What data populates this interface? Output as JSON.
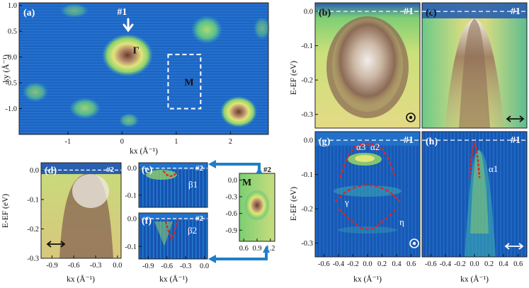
{
  "chart_data": [
    {
      "id": "a",
      "type": "heatmap",
      "label": "(a)",
      "xlabel": "kx (Å⁻¹)",
      "ylabel": "ky (Å⁻¹)",
      "xlim": [
        -1.9,
        2.7
      ],
      "ylim": [
        -1.5,
        1.05
      ],
      "xticks": [
        -1,
        0,
        1,
        2
      ],
      "yticks": [
        1.0,
        0.5,
        0.0,
        -0.5,
        -1.0
      ],
      "xtick_labels": [
        "-1",
        "0",
        "1",
        "2"
      ],
      "ytick_labels": [
        "1.0",
        "0.5",
        "0.0",
        "-0.5",
        "-1.0"
      ],
      "annotations": [
        {
          "text": "#1",
          "x": 0.0,
          "y": 0.82
        },
        {
          "text": "Γ",
          "x": 0.2,
          "y": 0.07
        },
        {
          "text": "M",
          "x": 1.15,
          "y": -0.55
        }
      ],
      "box": {
        "x0": 0.85,
        "x1": 1.45,
        "y0": -1.0,
        "y1": 0.05
      }
    },
    {
      "id": "b",
      "type": "heatmap",
      "label": "(b)",
      "tag": "#1",
      "ylabel": "E-EF (eV)",
      "ylim": [
        -0.34,
        0.025
      ],
      "yticks": [
        0.0,
        -0.1,
        -0.2,
        -0.3
      ],
      "ytick_labels": [
        "0.0",
        "-0.1",
        "-0.2",
        "-0.3"
      ],
      "fermi_level": 0.0,
      "polarization": "circular"
    },
    {
      "id": "c",
      "type": "heatmap",
      "label": "(c)",
      "tag": "#1",
      "ylim": [
        -0.34,
        0.025
      ],
      "fermi_level": 0.0,
      "polarization": "linear horizontal"
    },
    {
      "id": "d",
      "type": "heatmap",
      "label": "(d)",
      "tag": "#2",
      "xlabel": "kx (Å⁻¹)",
      "ylabel": "E-EF (eV)",
      "xlim": [
        -1.05,
        0.05
      ],
      "ylim": [
        -0.3,
        0.025
      ],
      "xticks": [
        -0.9,
        -0.6,
        -0.3,
        0.0
      ],
      "xtick_labels": [
        "-0.9",
        "-0.6",
        "-0.3",
        "0.0"
      ],
      "yticks": [
        0.0,
        -0.1,
        -0.2,
        -0.3
      ],
      "ytick_labels": [
        "0.0",
        "-0.1",
        "-0.2",
        "-0.3"
      ]
    },
    {
      "id": "e",
      "type": "heatmap",
      "label": "(e)",
      "tag": "#2",
      "ylim": [
        -0.145,
        0.02
      ],
      "yticks": [
        0.0,
        -0.1
      ],
      "ytick_labels": [
        "0.0",
        "-0.1"
      ],
      "band": "β1",
      "curve": {
        "x": [
          -0.66,
          -0.6,
          -0.54,
          -0.48,
          -0.42
        ],
        "y": [
          -0.01,
          -0.025,
          -0.03,
          -0.025,
          -0.01
        ]
      }
    },
    {
      "id": "f",
      "type": "heatmap",
      "label": "(f)",
      "tag": "#2",
      "xlabel": "kx (Å⁻¹)",
      "xlim": [
        -1.05,
        0.05
      ],
      "xticks": [
        -0.9,
        -0.6,
        -0.3,
        0.0
      ],
      "xtick_labels": [
        "-0.9",
        "-0.6",
        "-0.3",
        "0.0"
      ],
      "ylim": [
        -0.145,
        0.02
      ],
      "yticks": [
        0.0,
        -0.1
      ],
      "ytick_labels": [
        "0.0",
        "-0.1"
      ],
      "band": "β2",
      "curve": {
        "x": [
          -0.62,
          -0.57,
          -0.52,
          -0.48,
          -0.45,
          -0.42
        ],
        "y": [
          -0.01,
          -0.05,
          -0.075,
          -0.05,
          -0.02,
          0.0
        ]
      }
    },
    {
      "id": "M-inset",
      "type": "heatmap",
      "tag": "#2",
      "title": "M",
      "xlim": [
        0.5,
        1.3
      ],
      "ylim": [
        -1.1,
        0.12
      ],
      "xticks": [
        0.6,
        0.9,
        1.2
      ],
      "xtick_labels": [
        "0.6",
        "0.9",
        "1.2"
      ],
      "yticks": [
        0.0,
        -0.3,
        -0.6,
        -0.9
      ],
      "ytick_labels": [
        "0.0",
        "-0.3",
        "-0.6",
        "-0.9"
      ]
    },
    {
      "id": "g",
      "type": "heatmap",
      "label": "(g)",
      "tag": "#1",
      "xlabel": "kx (Å⁻¹)",
      "ylabel": "E-EF (eV)",
      "xlim": [
        -0.72,
        0.72
      ],
      "xticks": [
        -0.6,
        -0.4,
        -0.2,
        0.0,
        0.2,
        0.4,
        0.6
      ],
      "xtick_labels": [
        "-0.6",
        "-0.4",
        "-0.2",
        "0.0",
        "0.2",
        "0.4",
        "0.6"
      ],
      "ylim": [
        -0.34,
        0.025
      ],
      "yticks": [
        0.0,
        -0.1,
        -0.2,
        -0.3
      ],
      "ytick_labels": [
        "0.0",
        "-0.1",
        "-0.2",
        "-0.3"
      ],
      "bands": {
        "alpha3": "α3",
        "alpha2": "α2",
        "gamma": "γ",
        "eta": "η"
      },
      "curves": [
        {
          "name": "α outer",
          "x": [
            -0.38,
            -0.28,
            -0.18,
            -0.08,
            0.0,
            0.08,
            0.18,
            0.28,
            0.38
          ],
          "y": [
            -0.11,
            -0.05,
            -0.02,
            -0.01,
            -0.01,
            -0.01,
            -0.02,
            -0.05,
            -0.11
          ]
        },
        {
          "name": "α top",
          "x": [
            -0.14,
            -0.07,
            0.0,
            0.07,
            0.14
          ],
          "y": [
            -0.03,
            -0.015,
            -0.01,
            -0.015,
            -0.03
          ]
        },
        {
          "name": "γ",
          "x": [
            -0.45,
            -0.3,
            -0.15,
            0.0,
            0.15,
            0.3,
            0.45
          ],
          "y": [
            -0.18,
            -0.15,
            -0.135,
            -0.13,
            -0.135,
            -0.15,
            -0.18
          ]
        },
        {
          "name": "η",
          "x": [
            -0.4,
            -0.25,
            -0.1,
            0.0,
            0.1,
            0.25,
            0.4
          ],
          "y": [
            -0.2,
            -0.23,
            -0.255,
            -0.26,
            -0.255,
            -0.23,
            -0.2
          ]
        }
      ]
    },
    {
      "id": "h",
      "type": "heatmap",
      "label": "(h)",
      "tag": "#1",
      "xlabel": "kx (Å⁻¹)",
      "xlim": [
        -0.72,
        0.72
      ],
      "xticks": [
        -0.6,
        -0.4,
        -0.2,
        0.0,
        0.2,
        0.4,
        0.6
      ],
      "xtick_labels": [
        "-0.6",
        "-0.4",
        "-0.2",
        "0.0",
        "0.2",
        "0.4",
        "0.6"
      ],
      "ylim": [
        -0.34,
        0.025
      ],
      "band": "α1",
      "curve": {
        "x": [
          -0.07,
          -0.05,
          -0.02,
          0.0,
          0.02,
          0.05,
          0.07
        ],
        "y": [
          -0.11,
          -0.06,
          -0.02,
          -0.01,
          -0.02,
          -0.06,
          -0.11
        ]
      }
    }
  ],
  "colors": {
    "cmap": [
      "#0b3d91",
      "#1f77d4",
      "#3fb0b0",
      "#8fd16a",
      "#e2e47c",
      "#b48a6a",
      "#7a4a3a"
    ],
    "fit": "#d62728",
    "arrow": "#1e7fc9"
  }
}
